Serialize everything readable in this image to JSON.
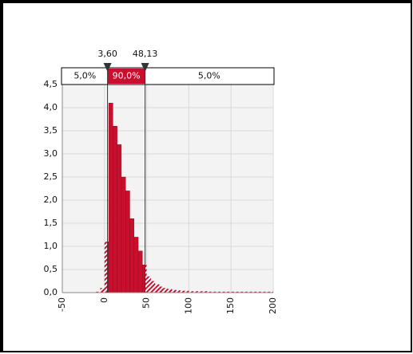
{
  "chart_data": {
    "type": "histogram",
    "bins": [
      -10,
      -5,
      0,
      5,
      10,
      15,
      20,
      25,
      30,
      35,
      40,
      45,
      50,
      55,
      60,
      65,
      70,
      75,
      80,
      85,
      90,
      95,
      100,
      105,
      110,
      115,
      120,
      125,
      130,
      135,
      140,
      145,
      150,
      155,
      160,
      165,
      170,
      175,
      180,
      185,
      190,
      195,
      200
    ],
    "values": [
      0.02,
      0.1,
      1.1,
      4.1,
      3.6,
      3.2,
      2.5,
      2.2,
      1.6,
      1.2,
      0.9,
      0.6,
      0.35,
      0.25,
      0.18,
      0.13,
      0.1,
      0.08,
      0.06,
      0.05,
      0.04,
      0.04,
      0.03,
      0.03,
      0.03,
      0.03,
      0.03,
      0.02,
      0.02,
      0.02,
      0.02,
      0.02,
      0.02,
      0.02,
      0.02,
      0.02,
      0.02,
      0.02,
      0.02,
      0.02,
      0.02,
      0.02
    ],
    "color": "#c8102e",
    "xlim": [
      -50,
      200
    ],
    "ylim": [
      0,
      4.5
    ],
    "xticks": [
      -50,
      0,
      50,
      100,
      150,
      200
    ],
    "yticks": [
      {
        "value": 0,
        "label": "0,0"
      },
      {
        "value": 0.5,
        "label": "0,5"
      },
      {
        "value": 1,
        "label": "1,0"
      },
      {
        "value": 1.5,
        "label": "1,5"
      },
      {
        "value": 2,
        "label": "2,0"
      },
      {
        "value": 2.5,
        "label": "2,5"
      },
      {
        "value": 3,
        "label": "3,0"
      },
      {
        "value": 3.5,
        "label": "3,5"
      },
      {
        "value": 4,
        "label": "4,0"
      },
      {
        "value": 4.5,
        "label": "4,5"
      }
    ],
    "grid": true,
    "delimiters": [
      {
        "value": 3.6,
        "label": "3,60"
      },
      {
        "value": 48.13,
        "label": "48,13"
      }
    ],
    "region_labels": [
      "5,0%",
      "90,0%",
      "5,0%"
    ]
  }
}
